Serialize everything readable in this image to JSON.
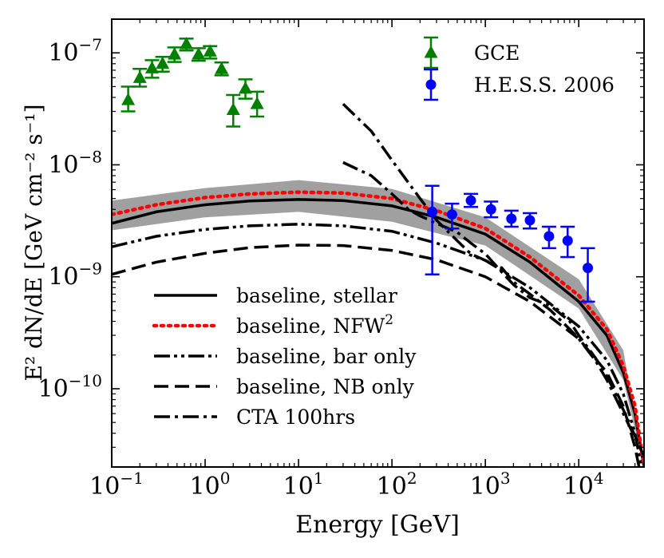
{
  "chart_data": {
    "type": "line",
    "xscale": "log",
    "yscale": "log",
    "xlim": [
      0.1,
      50000
    ],
    "ylim": [
      2e-11,
      2e-07
    ],
    "xlabel": "Energy [GeV]",
    "ylabel": "E² dN/dE [GeV cm⁻² s⁻¹]",
    "x_ticks": [
      {
        "value": 0.1,
        "base": "10",
        "exp": "−1"
      },
      {
        "value": 1,
        "base": "10",
        "exp": "0"
      },
      {
        "value": 10,
        "base": "10",
        "exp": "1"
      },
      {
        "value": 100,
        "base": "10",
        "exp": "2"
      },
      {
        "value": 1000,
        "base": "10",
        "exp": "3"
      },
      {
        "value": 10000,
        "base": "10",
        "exp": "4"
      }
    ],
    "y_ticks": [
      {
        "value": 1e-10,
        "base": "10",
        "exp": "−10"
      },
      {
        "value": 1e-09,
        "base": "10",
        "exp": "−9"
      },
      {
        "value": 1e-08,
        "base": "10",
        "exp": "−8"
      },
      {
        "value": 1e-07,
        "base": "10",
        "exp": "−7"
      }
    ],
    "band": {
      "name": "baseline uncertainty",
      "color": "#a0a0a0",
      "x": [
        0.1,
        1,
        10,
        100,
        1000,
        10000,
        30000,
        50000
      ],
      "lower": [
        2.6e-09,
        3.4e-09,
        3.8e-09,
        3.1e-09,
        1.9e-09,
        5.2e-10,
        1.2e-10,
        2e-11
      ],
      "upper": [
        4.8e-09,
        6.2e-09,
        7.3e-09,
        6.1e-09,
        3.4e-09,
        9.5e-10,
        2.2e-10,
        2e-11
      ]
    },
    "series": [
      {
        "name": "baseline, stellar",
        "legend": "baseline, stellar",
        "legend_sup": "",
        "style": "solid",
        "color": "#000000",
        "x": [
          0.1,
          0.3,
          1,
          3,
          10,
          30,
          100,
          300,
          1000,
          3000,
          10000,
          20000,
          30000,
          40000,
          50000
        ],
        "y": [
          3e-09,
          3.8e-09,
          4.4e-09,
          4.75e-09,
          4.9e-09,
          4.8e-09,
          4.3e-09,
          3.4e-09,
          2.4e-09,
          1.35e-09,
          6e-10,
          3e-10,
          1.4e-10,
          6e-11,
          2e-11
        ]
      },
      {
        "name": "baseline, NFW2",
        "legend": "baseline, NFW",
        "legend_sup": "2",
        "style": "dotted",
        "color": "#ff0000",
        "x": [
          0.1,
          0.3,
          1,
          3,
          10,
          30,
          100,
          300,
          1000,
          3000,
          10000,
          20000,
          30000,
          40000,
          50000
        ],
        "y": [
          3.6e-09,
          4.4e-09,
          5.1e-09,
          5.5e-09,
          5.7e-09,
          5.6e-09,
          5e-09,
          3.9e-09,
          2.7e-09,
          1.5e-09,
          6.8e-10,
          3.4e-10,
          1.6e-10,
          7e-11,
          2e-11
        ]
      },
      {
        "name": "baseline, bar only",
        "legend": "baseline, bar only",
        "legend_sup": "",
        "style": "dashdotdot",
        "color": "#000000",
        "x": [
          0.1,
          0.3,
          1,
          3,
          10,
          30,
          100,
          300,
          1000,
          3000,
          10000,
          20000,
          30000,
          40000,
          50000
        ],
        "y": [
          1.85e-09,
          2.3e-09,
          2.65e-09,
          2.85e-09,
          2.95e-09,
          2.85e-09,
          2.55e-09,
          2e-09,
          1.4e-09,
          8e-10,
          3.6e-10,
          1.8e-10,
          9e-11,
          4e-11,
          1.5e-11
        ]
      },
      {
        "name": "baseline, NB only",
        "legend": "baseline, NB only",
        "legend_sup": "",
        "style": "dashed",
        "color": "#000000",
        "x": [
          0.1,
          0.3,
          1,
          3,
          10,
          30,
          100,
          300,
          1000,
          3000,
          10000,
          20000,
          30000,
          40000,
          50000
        ],
        "y": [
          1.05e-09,
          1.35e-09,
          1.62e-09,
          1.82e-09,
          1.92e-09,
          1.9e-09,
          1.72e-09,
          1.42e-09,
          1e-09,
          6e-10,
          2.8e-10,
          1.4e-10,
          7e-11,
          3e-11,
          1.2e-11
        ]
      },
      {
        "name": "CTA 100hrs",
        "legend": "CTA 100hrs",
        "legend_sup": "",
        "style": "dashdot",
        "color": "#000000",
        "x": [
          30,
          60,
          100,
          200,
          300,
          500,
          700,
          1000,
          1500,
          2000,
          3000,
          5000,
          8000,
          10000,
          15000,
          20000,
          30000,
          50000
        ],
        "y": [
          3.5e-08,
          2e-08,
          1.1e-08,
          5e-09,
          3.2e-09,
          2.1e-09,
          1.6e-09,
          1.4e-09,
          1.2e-09,
          9e-10,
          7e-10,
          5e-10,
          3.4e-10,
          2.8e-10,
          1.8e-10,
          1.2e-10,
          6e-11,
          2.5e-11
        ]
      },
      {
        "name": "CTA 100hrs (second)",
        "legend": "",
        "legend_sup": "",
        "style": "dashdot",
        "color": "#000000",
        "x": [
          30,
          60,
          100,
          150,
          200,
          300,
          500,
          700,
          1000,
          1500,
          2000,
          3000,
          5000,
          8000,
          10000,
          15000,
          20000,
          30000,
          50000
        ],
        "y": [
          1.05e-08,
          8e-09,
          5.5e-09,
          4e-09,
          3.5e-09,
          3e-09,
          2.5e-09,
          2e-09,
          1.6e-09,
          1.1e-09,
          8.5e-10,
          6.5e-10,
          5.5e-10,
          4e-10,
          3e-10,
          1.9e-10,
          1.3e-10,
          6.5e-11,
          2.5e-11
        ]
      }
    ],
    "points": [
      {
        "name": "GCE",
        "legend": "GCE",
        "marker": "triangle",
        "color": "#008000",
        "x": [
          0.15,
          0.2,
          0.27,
          0.35,
          0.47,
          0.63,
          0.85,
          1.13,
          1.5,
          2.0,
          2.7,
          3.6
        ],
        "y": [
          3.8e-08,
          6e-08,
          7.3e-08,
          8e-08,
          9.7e-08,
          1.2e-07,
          9.7e-08,
          1.03e-07,
          7.2e-08,
          3.1e-08,
          4.8e-08,
          3.5e-08
        ],
        "yerr_low": [
          3e-08,
          5e-08,
          6e-08,
          6.8e-08,
          8.3e-08,
          1.05e-07,
          8.5e-08,
          8.9e-08,
          6.3e-08,
          2.2e-08,
          3.9e-08,
          2.7e-08
        ],
        "yerr_high": [
          5e-08,
          7.2e-08,
          8.6e-08,
          9.2e-08,
          1.12e-07,
          1.34e-07,
          1.1e-07,
          1.15e-07,
          8.2e-08,
          4.2e-08,
          5.8e-08,
          4.5e-08
        ]
      },
      {
        "name": "H.E.S.S. 2006",
        "legend": "H.E.S.S. 2006",
        "marker": "circle",
        "color": "#0000ff",
        "x": [
          270,
          440,
          700,
          1150,
          1900,
          3000,
          4800,
          7600,
          12500
        ],
        "y": [
          3.8e-09,
          3.6e-09,
          4.8e-09,
          4e-09,
          3.3e-09,
          3.2e-09,
          2.3e-09,
          2.1e-09,
          1.2e-09
        ],
        "yerr_low": [
          1.05e-09,
          2.7e-09,
          4.2e-09,
          3.4e-09,
          2.8e-09,
          2.7e-09,
          1.8e-09,
          1.5e-09,
          6e-10
        ],
        "yerr_high": [
          6.5e-09,
          4.5e-09,
          5.5e-09,
          4.7e-09,
          3.9e-09,
          3.7e-09,
          2.8e-09,
          2.8e-09,
          1.8e-09
        ]
      }
    ],
    "legend_lines_placement": "lower-left",
    "legend_points_placement": "upper-right"
  }
}
